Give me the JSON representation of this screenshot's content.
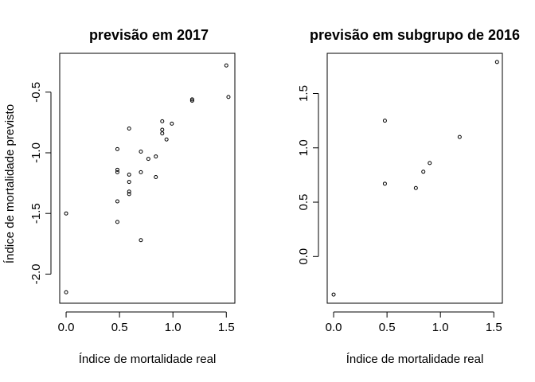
{
  "chart_data": [
    {
      "type": "scatter",
      "title": "previsão em 2017",
      "xlabel": "Índice de mortalidade real",
      "ylabel": "Índice de mortalidade previsto",
      "xlim": [
        -0.06,
        1.58
      ],
      "ylim": [
        -2.24,
        -0.18
      ],
      "xticks": [
        0.0,
        0.5,
        1.0,
        1.5
      ],
      "xtick_labels": [
        "0.0",
        "0.5",
        "1.0",
        "1.5"
      ],
      "yticks": [
        -2.0,
        -1.5,
        -1.0,
        -0.5
      ],
      "ytick_labels": [
        "-2.0",
        "-1.5",
        "-1.0",
        "-0.5"
      ],
      "points": [
        {
          "x": 0.0,
          "y": -2.15
        },
        {
          "x": 0.0,
          "y": -1.5
        },
        {
          "x": 0.48,
          "y": -0.97
        },
        {
          "x": 0.48,
          "y": -1.14
        },
        {
          "x": 0.48,
          "y": -1.16
        },
        {
          "x": 0.48,
          "y": -1.4
        },
        {
          "x": 0.48,
          "y": -1.57
        },
        {
          "x": 0.59,
          "y": -0.8
        },
        {
          "x": 0.59,
          "y": -1.18
        },
        {
          "x": 0.59,
          "y": -1.24
        },
        {
          "x": 0.59,
          "y": -1.32
        },
        {
          "x": 0.59,
          "y": -1.34
        },
        {
          "x": 0.7,
          "y": -0.99
        },
        {
          "x": 0.7,
          "y": -1.16
        },
        {
          "x": 0.7,
          "y": -1.72
        },
        {
          "x": 0.77,
          "y": -1.05
        },
        {
          "x": 0.84,
          "y": -1.03
        },
        {
          "x": 0.84,
          "y": -1.2
        },
        {
          "x": 0.9,
          "y": -0.74
        },
        {
          "x": 0.9,
          "y": -0.81
        },
        {
          "x": 0.9,
          "y": -0.84
        },
        {
          "x": 0.94,
          "y": -0.89
        },
        {
          "x": 0.99,
          "y": -0.76
        },
        {
          "x": 1.18,
          "y": -0.56
        },
        {
          "x": 1.18,
          "y": -0.57
        },
        {
          "x": 1.5,
          "y": -0.28
        },
        {
          "x": 1.52,
          "y": -0.54
        }
      ]
    },
    {
      "type": "scatter",
      "title": "previsão em subgrupo de 2016",
      "xlabel": "Índice de mortalidade real",
      "ylabel": "",
      "xlim": [
        -0.06,
        1.58
      ],
      "ylim": [
        -0.43,
        1.87
      ],
      "xticks": [
        0.0,
        0.5,
        1.0,
        1.5
      ],
      "xtick_labels": [
        "0.0",
        "0.5",
        "1.0",
        "1.5"
      ],
      "yticks": [
        0.0,
        0.5,
        1.0,
        1.5
      ],
      "ytick_labels": [
        "0.0",
        "0.5",
        "1.0",
        "1.5"
      ],
      "points": [
        {
          "x": 0.0,
          "y": -0.35
        },
        {
          "x": 0.48,
          "y": 1.25
        },
        {
          "x": 0.48,
          "y": 0.67
        },
        {
          "x": 0.77,
          "y": 0.63
        },
        {
          "x": 0.84,
          "y": 0.78
        },
        {
          "x": 0.9,
          "y": 0.86
        },
        {
          "x": 1.18,
          "y": 1.1
        },
        {
          "x": 1.53,
          "y": 1.79
        }
      ]
    }
  ]
}
